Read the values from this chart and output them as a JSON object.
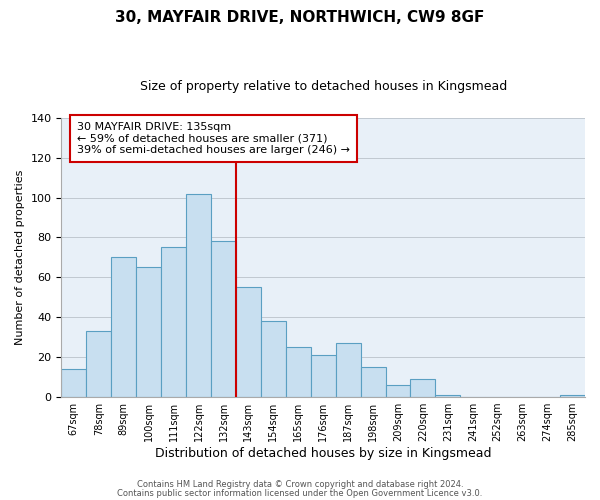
{
  "title": "30, MAYFAIR DRIVE, NORTHWICH, CW9 8GF",
  "subtitle": "Size of property relative to detached houses in Kingsmead",
  "xlabel": "Distribution of detached houses by size in Kingsmead",
  "ylabel": "Number of detached properties",
  "bin_labels": [
    "67sqm",
    "78sqm",
    "89sqm",
    "100sqm",
    "111sqm",
    "122sqm",
    "132sqm",
    "143sqm",
    "154sqm",
    "165sqm",
    "176sqm",
    "187sqm",
    "198sqm",
    "209sqm",
    "220sqm",
    "231sqm",
    "241sqm",
    "252sqm",
    "263sqm",
    "274sqm",
    "285sqm"
  ],
  "bar_heights": [
    14,
    33,
    70,
    65,
    75,
    102,
    78,
    55,
    38,
    25,
    21,
    27,
    15,
    6,
    9,
    1,
    0,
    0,
    0,
    0,
    1
  ],
  "bar_color": "#c8dff0",
  "bar_edge_color": "#5a9fc2",
  "vline_color": "#cc0000",
  "ylim": [
    0,
    140
  ],
  "yticks": [
    0,
    20,
    40,
    60,
    80,
    100,
    120,
    140
  ],
  "annotation_title": "30 MAYFAIR DRIVE: 135sqm",
  "annotation_line1": "← 59% of detached houses are smaller (371)",
  "annotation_line2": "39% of semi-detached houses are larger (246) →",
  "annotation_box_edge": "#cc0000",
  "bg_color": "#e8f0f8",
  "footer_line1": "Contains HM Land Registry data © Crown copyright and database right 2024.",
  "footer_line2": "Contains public sector information licensed under the Open Government Licence v3.0."
}
